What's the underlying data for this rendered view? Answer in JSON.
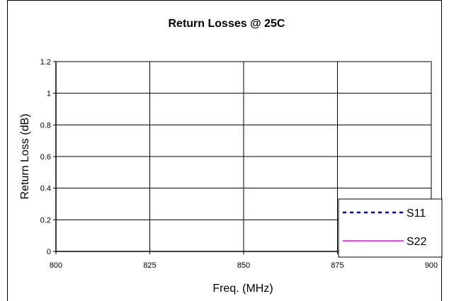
{
  "chart_data": {
    "type": "line",
    "title": "Return Losses @ 25C",
    "xlabel": "Freq. (MHz)",
    "ylabel": "Return Loss (dB)",
    "xlim": [
      800,
      900
    ],
    "ylim": [
      0,
      1.2
    ],
    "x_ticks": [
      "800",
      "825",
      "850",
      "875",
      "900"
    ],
    "y_ticks": [
      "0",
      "0.2",
      "0.4",
      "0.6",
      "0.8",
      "1",
      "1.2"
    ],
    "grid": true,
    "legend_position": "bottom-right",
    "series": [
      {
        "name": "S11",
        "color": "#000080",
        "style": "dashed",
        "values": []
      },
      {
        "name": "S22",
        "color": "#ff00ff",
        "style": "solid",
        "values": []
      }
    ]
  }
}
